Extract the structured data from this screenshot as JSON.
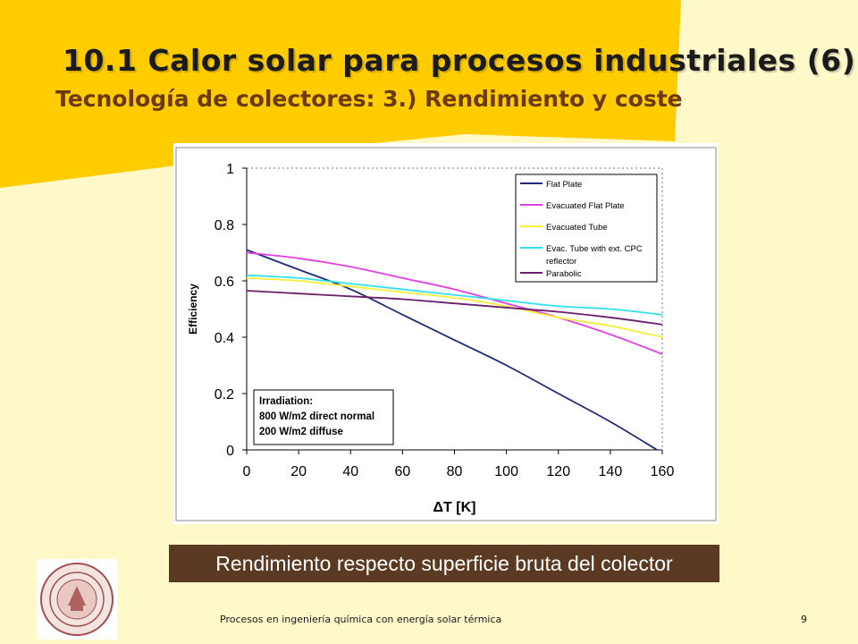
{
  "slide": {
    "title": "10.1 Calor solar para procesos industriales (6)",
    "subtitle": "Tecnología de colectores: 3.) Rendimiento y coste",
    "caption": "Rendimiento respecto superficie bruta del colector",
    "footer": "Procesos en ingeniería química con energía solar térmica",
    "page_number": "9",
    "colors": {
      "background": "#fff9c9",
      "banner": "#ffcc00",
      "caption_bg": "#5a3a22",
      "subtitle": "#6b3a10"
    }
  },
  "chart_data": {
    "type": "line",
    "xlabel": "ΔT [K]",
    "ylabel": "Efficiency",
    "xlim": [
      0,
      160
    ],
    "ylim": [
      0,
      1
    ],
    "x_ticks": [
      "0",
      "20",
      "40",
      "60",
      "80",
      "100",
      "120",
      "140",
      "160"
    ],
    "y_ticks": [
      "0",
      "0.2",
      "0.4",
      "0.6",
      "0.8",
      "1"
    ],
    "grid": "dotted at y=1 and x=160",
    "legend_position": "top-right",
    "annotation": [
      "Irradiation:",
      "800 W/m2 direct normal",
      "200 W/m2 diffuse"
    ],
    "series": [
      {
        "name": "Flat Plate",
        "color": "#1f2a7a",
        "x": [
          0,
          20,
          40,
          60,
          80,
          100,
          120,
          140,
          158
        ],
        "y": [
          0.71,
          0.64,
          0.57,
          0.48,
          0.39,
          0.3,
          0.2,
          0.1,
          0.0
        ]
      },
      {
        "name": "Evacuated Flat Plate",
        "color": "#e43fe0",
        "x": [
          0,
          20,
          40,
          60,
          80,
          100,
          120,
          140,
          160
        ],
        "y": [
          0.7,
          0.68,
          0.65,
          0.61,
          0.57,
          0.52,
          0.47,
          0.41,
          0.34
        ]
      },
      {
        "name": "Evacuated Tube",
        "color": "#f5ef3a",
        "x": [
          0,
          20,
          40,
          60,
          80,
          100,
          120,
          140,
          160
        ],
        "y": [
          0.61,
          0.6,
          0.58,
          0.56,
          0.54,
          0.51,
          0.47,
          0.44,
          0.4
        ]
      },
      {
        "name": "Evac. Tube with ext. CPC reflector",
        "color": "#33e0ee",
        "x": [
          0,
          20,
          40,
          60,
          80,
          100,
          120,
          140,
          160
        ],
        "y": [
          0.62,
          0.61,
          0.59,
          0.57,
          0.55,
          0.53,
          0.51,
          0.5,
          0.48
        ]
      },
      {
        "name": "Parabolic",
        "color": "#6a1f6a",
        "x": [
          0,
          20,
          40,
          60,
          80,
          100,
          120,
          140,
          160
        ],
        "y": [
          0.565,
          0.555,
          0.545,
          0.535,
          0.52,
          0.505,
          0.49,
          0.47,
          0.445
        ]
      }
    ]
  }
}
